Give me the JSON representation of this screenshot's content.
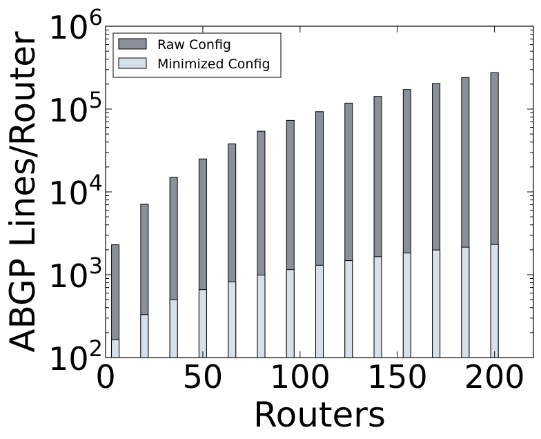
{
  "chart_data": {
    "type": "bar",
    "title": "",
    "xlabel": "Routers",
    "ylabel": "ABGP Lines/Router",
    "yscale": "log",
    "xlim": [
      0,
      220
    ],
    "ylim": [
      100,
      1000000
    ],
    "x_ticks": [
      0,
      50,
      100,
      150,
      200
    ],
    "y_ticks": [
      {
        "value": 100,
        "base": "10",
        "exp": "2"
      },
      {
        "value": 1000,
        "base": "10",
        "exp": "3"
      },
      {
        "value": 10000,
        "base": "10",
        "exp": "4"
      },
      {
        "value": 100000,
        "base": "10",
        "exp": "5"
      },
      {
        "value": 1000000,
        "base": "10",
        "exp": "6"
      }
    ],
    "grid": false,
    "legend_position": "top-left",
    "x": [
      5,
      20,
      35,
      50,
      65,
      80,
      95,
      110,
      125,
      140,
      155,
      170,
      185,
      200
    ],
    "series": [
      {
        "name": "Raw Config",
        "color": "#8a9099",
        "values": [
          2300,
          7100,
          15000,
          25000,
          38000,
          54000,
          73000,
          93000,
          118000,
          142000,
          172000,
          204000,
          240000,
          275000
        ]
      },
      {
        "name": "Minimized Config",
        "color": "#d6e0ea",
        "values": [
          165,
          330,
          500,
          660,
          820,
          990,
          1150,
          1300,
          1480,
          1650,
          1830,
          1990,
          2150,
          2320
        ]
      }
    ]
  }
}
